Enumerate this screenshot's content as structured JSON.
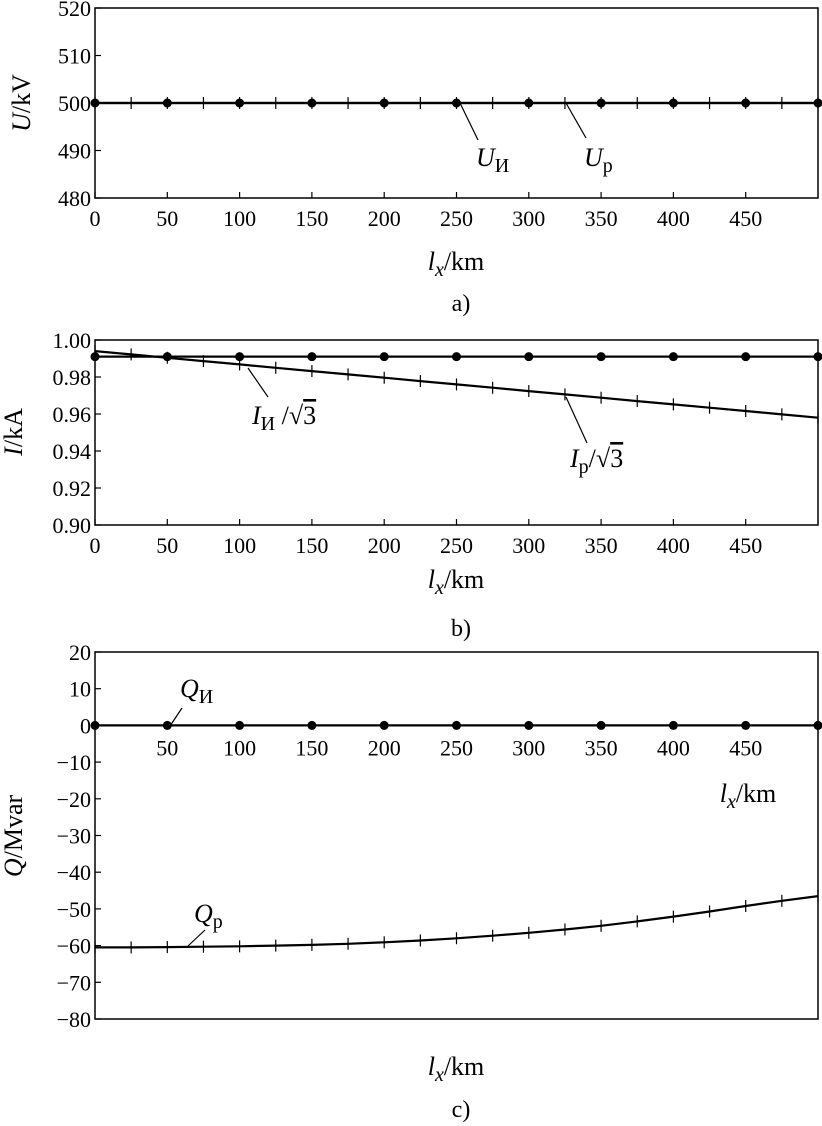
{
  "chart_data": [
    {
      "type": "line",
      "caption": "a)",
      "xlabel": "l_x/km",
      "ylabel": "U/kV",
      "xlim": [
        0,
        500
      ],
      "ylim": [
        480,
        520
      ],
      "xticks": [
        "0",
        "50",
        "100",
        "150",
        "200",
        "250",
        "300",
        "350",
        "400",
        "450"
      ],
      "yticks": [
        "480",
        "490",
        "500",
        "510",
        "520"
      ],
      "series": [
        {
          "name": "U_И",
          "marker": "dot",
          "x": [
            0,
            50,
            100,
            150,
            200,
            250,
            300,
            350,
            400,
            450,
            500
          ],
          "y": [
            500,
            500,
            500,
            500,
            500,
            500,
            500,
            500,
            500,
            500,
            500
          ]
        },
        {
          "name": "U_p",
          "marker": "plus",
          "x": [
            0,
            25,
            50,
            75,
            100,
            125,
            150,
            175,
            200,
            225,
            250,
            275,
            300,
            325,
            350,
            375,
            400,
            425,
            450,
            475,
            500
          ],
          "y": [
            500,
            500,
            500,
            500,
            500,
            500,
            500,
            500,
            500,
            500,
            500,
            500,
            500,
            500,
            500,
            500,
            500,
            500,
            500,
            500,
            500
          ]
        }
      ],
      "annotations": [
        {
          "text": "U_И",
          "x": 255,
          "y": 500
        },
        {
          "text": "U_p",
          "x": 325,
          "y": 500
        }
      ]
    },
    {
      "type": "line",
      "caption": "b)",
      "xlabel": "l_x/km",
      "ylabel": "I/kA",
      "xlim": [
        0,
        500
      ],
      "ylim": [
        0.9,
        1.0
      ],
      "xticks": [
        "0",
        "50",
        "100",
        "150",
        "200",
        "250",
        "300",
        "350",
        "400",
        "450"
      ],
      "yticks": [
        "0.90",
        "0.92",
        "0.94",
        "0.96",
        "0.98",
        "1.00"
      ],
      "series": [
        {
          "name": "I_И/√3",
          "marker": "dot",
          "x": [
            0,
            50,
            100,
            150,
            200,
            250,
            300,
            350,
            400,
            450,
            500
          ],
          "y": [
            0.991,
            0.991,
            0.991,
            0.991,
            0.991,
            0.991,
            0.991,
            0.991,
            0.991,
            0.991,
            0.991
          ]
        },
        {
          "name": "I_p/√3",
          "marker": "plus",
          "x": [
            0,
            25,
            50,
            75,
            100,
            125,
            150,
            175,
            200,
            225,
            250,
            275,
            300,
            325,
            350,
            375,
            400,
            425,
            450,
            475,
            500
          ],
          "y": [
            0.994,
            0.9922,
            0.9904,
            0.9886,
            0.9868,
            0.985,
            0.9832,
            0.9814,
            0.9796,
            0.9778,
            0.976,
            0.9742,
            0.9724,
            0.9706,
            0.9688,
            0.967,
            0.9652,
            0.9634,
            0.9616,
            0.9598,
            0.958
          ]
        }
      ],
      "annotations": [
        {
          "text": "I_И /√3",
          "x": 110,
          "y": 0.987
        },
        {
          "text": "I_p/√3",
          "x": 325,
          "y": 0.971
        }
      ]
    },
    {
      "type": "line",
      "caption": "c)",
      "xlabel": "l_x/km",
      "ylabel": "Q/Mvar",
      "xlim": [
        0,
        500
      ],
      "ylim": [
        -80,
        20
      ],
      "xticks": [
        "50",
        "100",
        "150",
        "200",
        "250",
        "300",
        "350",
        "400",
        "450"
      ],
      "yticks": [
        "-80",
        "-70",
        "-60",
        "-50",
        "-40",
        "-30",
        "-20",
        "-10",
        "0",
        "10",
        "20"
      ],
      "series": [
        {
          "name": "Q_И",
          "marker": "dot",
          "x": [
            0,
            50,
            100,
            150,
            200,
            250,
            300,
            350,
            400,
            450,
            500
          ],
          "y": [
            0,
            0,
            0,
            0,
            0,
            0,
            0,
            0,
            0,
            0,
            0
          ]
        },
        {
          "name": "Q_p",
          "marker": "plus",
          "x": [
            0,
            25,
            50,
            75,
            100,
            125,
            150,
            175,
            200,
            225,
            250,
            275,
            300,
            325,
            350,
            375,
            400,
            425,
            450,
            475,
            500
          ],
          "y": [
            -60.5,
            -60.5,
            -60.4,
            -60.3,
            -60.2,
            -60.0,
            -59.8,
            -59.5,
            -59.1,
            -58.6,
            -58.0,
            -57.3,
            -56.5,
            -55.6,
            -54.6,
            -53.4,
            -52.1,
            -50.7,
            -49.2,
            -47.8,
            -46.5
          ]
        }
      ],
      "annotations": [
        {
          "text": "Q_И",
          "x": 52,
          "y": 0
        },
        {
          "text": "Q_p",
          "x": 65,
          "y": -60.4
        }
      ]
    }
  ],
  "text": {
    "a": {
      "caption": "a)",
      "ylabel_var": "U",
      "ylabel_unit": "/kV",
      "xlabel_var": "l",
      "xlabel_sub": "x",
      "xlabel_unit": "/km",
      "ann1_var": "U",
      "ann1_sub": "И",
      "ann2_var": "U",
      "ann2_sub": "p"
    },
    "b": {
      "caption": "b)",
      "ylabel_var": "I",
      "ylabel_unit": "/kA",
      "xlabel_var": "l",
      "xlabel_sub": "x",
      "xlabel_unit": "/km",
      "ann1_var": "I",
      "ann1_sub": "И",
      "ann1_rest": " /",
      "ann1_root": "√",
      "ann1_num": "3",
      "ann2_var": "I",
      "ann2_sub": "p",
      "ann2_rest": "/",
      "ann2_root": "√",
      "ann2_num": "3"
    },
    "c": {
      "caption": "c)",
      "ylabel_var": "Q",
      "ylabel_unit": "/Mvar",
      "xlabel_var": "l",
      "xlabel_sub": "x",
      "xlabel_unit": "/km",
      "inner_xlabel_var": "l",
      "inner_xlabel_sub": "x",
      "inner_xlabel_unit": "/km",
      "ann1_var": "Q",
      "ann1_sub": "И",
      "ann2_var": "Q",
      "ann2_sub": "p"
    }
  }
}
